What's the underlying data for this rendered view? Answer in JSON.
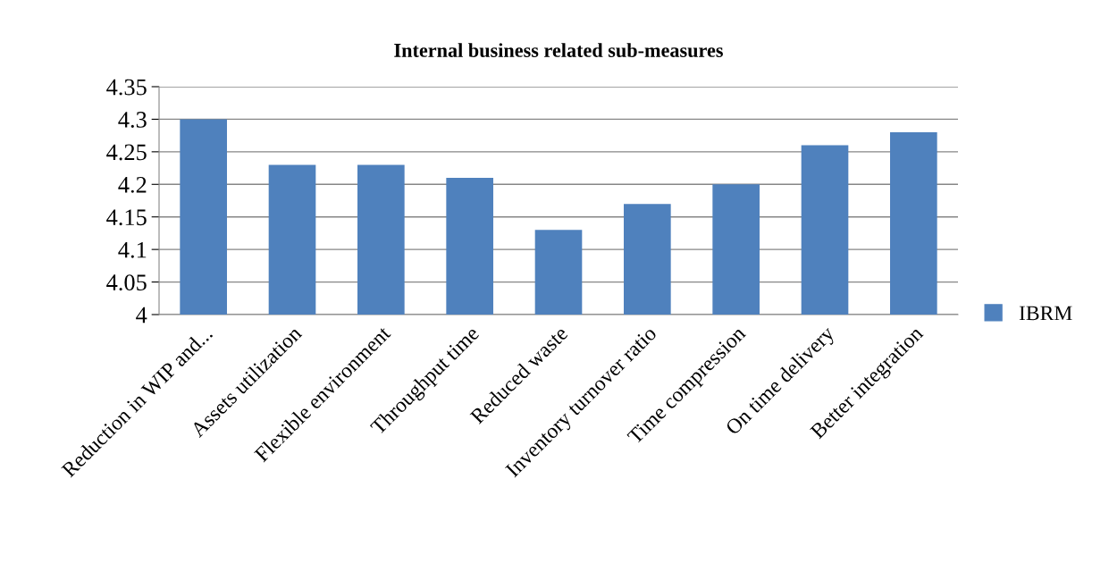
{
  "chart_data": {
    "type": "bar",
    "title": "Internal business related sub-measures",
    "categories": [
      "Reduction in WIP and...",
      "Assets utilization",
      "Flexible environment",
      "Throughput time",
      "Reduced waste",
      "Inventory turnover ratio",
      "Time compression",
      "On time delivery",
      "Better integration"
    ],
    "series": [
      {
        "name": "IBRM",
        "color": "#4f81bd",
        "values": [
          4.3,
          4.23,
          4.23,
          4.21,
          4.13,
          4.17,
          4.2,
          4.26,
          4.28
        ]
      }
    ],
    "ylim": [
      4,
      4.35
    ],
    "yticks": [
      4,
      {
        "value": 4.05,
        "label": "4.05"
      },
      {
        "value": 4.1,
        "label": "4.1"
      },
      {
        "value": 4.15,
        "label": "4.15"
      },
      {
        "value": 4.2,
        "label": "4.2"
      },
      {
        "value": 4.25,
        "label": "4.25"
      },
      {
        "value": 4.3,
        "label": "4.3"
      },
      {
        "value": 4.35,
        "label": "4.35"
      }
    ],
    "grid": "y",
    "legend": "right"
  }
}
